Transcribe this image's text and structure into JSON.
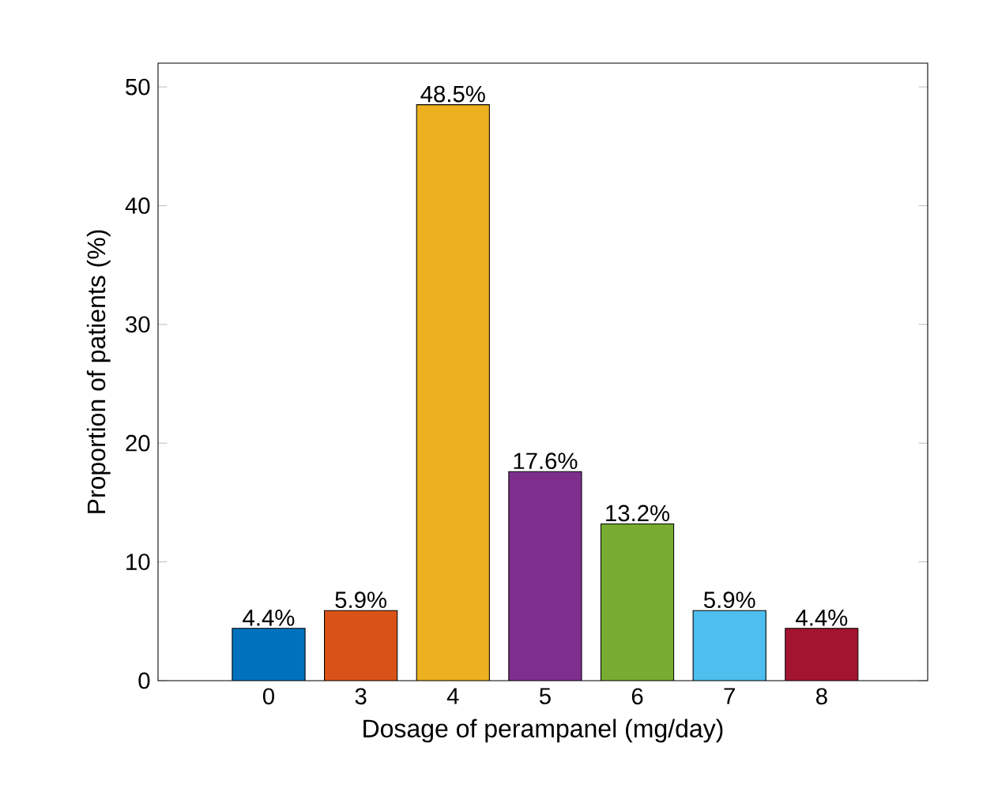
{
  "chart_data": {
    "type": "bar",
    "xlabel": "Dosage of perampanel (mg/day)",
    "ylabel": "Proportion of patients (%)",
    "categories": [
      "0",
      "3",
      "4",
      "5",
      "6",
      "7",
      "8"
    ],
    "values": [
      4.4,
      5.9,
      48.5,
      17.6,
      13.2,
      5.9,
      4.4
    ],
    "colors": [
      "#0072bd",
      "#d95319",
      "#edb120",
      "#7e2f8e",
      "#77ac30",
      "#4dbeee",
      "#a2142f"
    ],
    "value_labels": [
      "4.4%",
      "5.9%",
      "48.5%",
      "17.6%",
      "13.2%",
      "5.9%",
      "4.4%"
    ],
    "ylim": [
      0,
      52
    ],
    "yticks": [
      0,
      10,
      20,
      30,
      40,
      50
    ]
  }
}
